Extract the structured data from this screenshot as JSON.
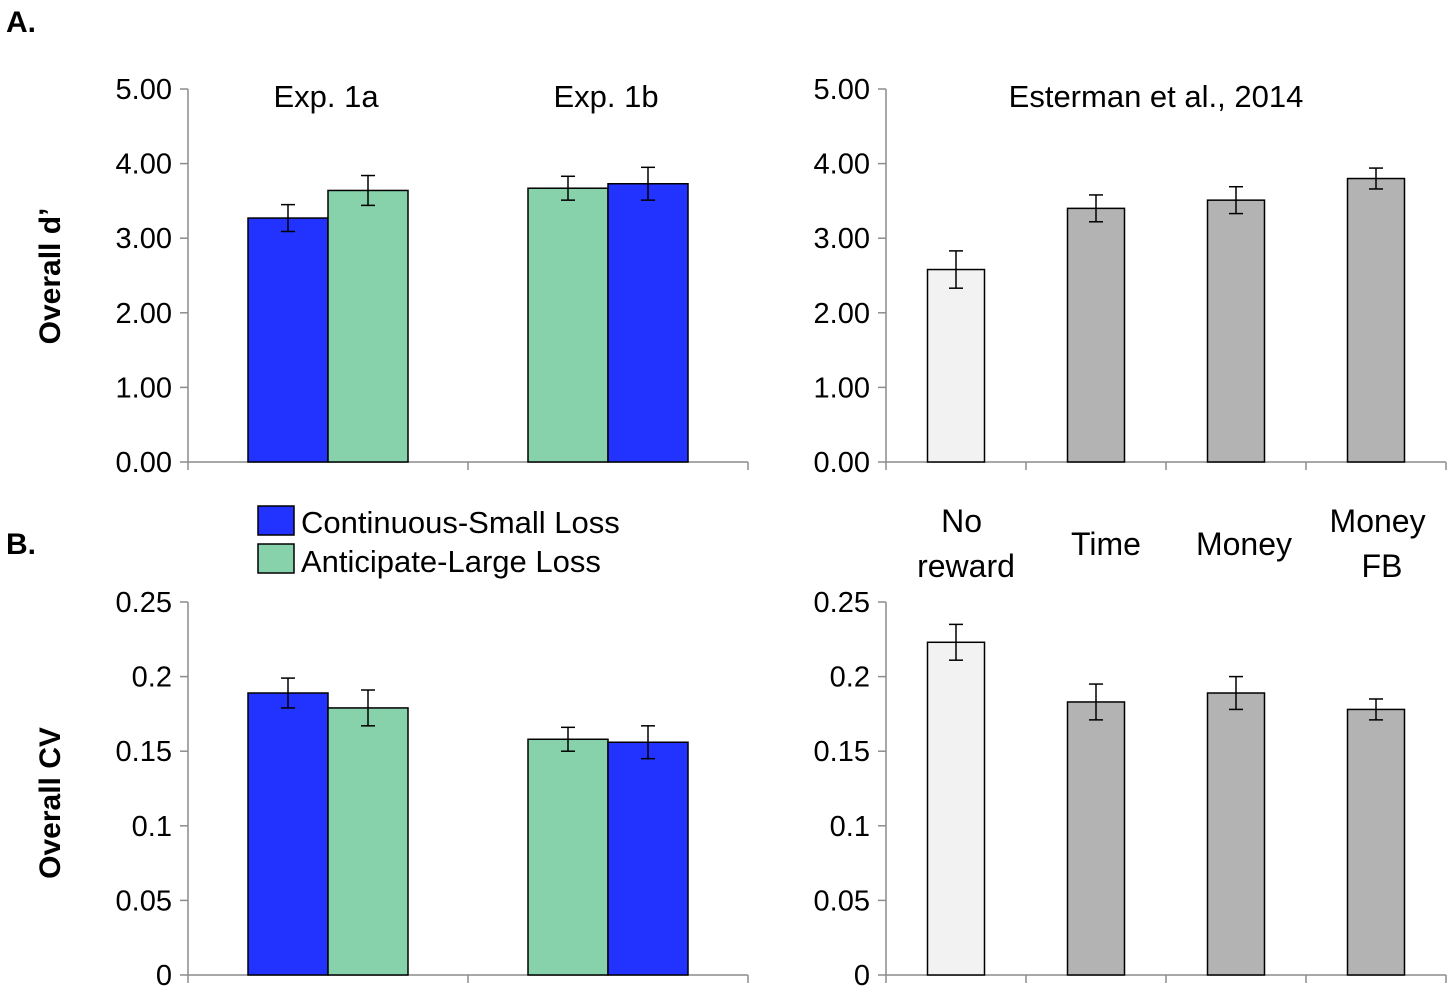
{
  "panel_labels": {
    "a": "A.",
    "b": "B."
  },
  "legend": [
    {
      "label": "Continuous-Small Loss",
      "color": "#2233ff"
    },
    {
      "label": "Anticipate-Large Loss",
      "color": "#87d1ab"
    }
  ],
  "categories_right": [
    "No reward",
    "Time",
    "Money",
    "Money FB"
  ],
  "colors": {
    "blue": "#2233ff",
    "green": "#87d1ab",
    "light_gray": "#f2f2f2",
    "gray": "#b3b3b3"
  },
  "chart_data": [
    {
      "type": "bar",
      "panel": "A",
      "ylabel": "Overall d’",
      "ylim": [
        0,
        5
      ],
      "yticks": [
        "0.00",
        "1.00",
        "2.00",
        "3.00",
        "4.00",
        "5.00"
      ],
      "groups": [
        {
          "title": "Exp. 1a",
          "bars": [
            {
              "series": "Continuous-Small Loss",
              "value": 3.27,
              "err": 0.18
            },
            {
              "series": "Anticipate-Large Loss",
              "value": 3.64,
              "err": 0.2
            }
          ]
        },
        {
          "title": "Exp. 1b",
          "bars": [
            {
              "series": "Anticipate-Large Loss",
              "value": 3.67,
              "err": 0.16
            },
            {
              "series": "Continuous-Small Loss",
              "value": 3.73,
              "err": 0.22
            }
          ]
        }
      ]
    },
    {
      "type": "bar",
      "panel": "A",
      "title": "Esterman et al., 2014",
      "ylim": [
        0,
        5
      ],
      "yticks": [
        "0.00",
        "1.00",
        "2.00",
        "3.00",
        "4.00",
        "5.00"
      ],
      "categories": [
        "No reward",
        "Time",
        "Money",
        "Money FB"
      ],
      "values": [
        2.58,
        3.4,
        3.51,
        3.8
      ],
      "errors": [
        0.25,
        0.18,
        0.18,
        0.14
      ]
    },
    {
      "type": "bar",
      "panel": "B",
      "ylabel": "Overall CV",
      "ylim": [
        0,
        0.25
      ],
      "yticks": [
        "0",
        "0.05",
        "0.1",
        "0.15",
        "0.2",
        "0.25"
      ],
      "groups": [
        {
          "bars": [
            {
              "series": "Continuous-Small Loss",
              "value": 0.189,
              "err": 0.01
            },
            {
              "series": "Anticipate-Large Loss",
              "value": 0.179,
              "err": 0.012
            }
          ]
        },
        {
          "bars": [
            {
              "series": "Anticipate-Large Loss",
              "value": 0.158,
              "err": 0.008
            },
            {
              "series": "Continuous-Small Loss",
              "value": 0.156,
              "err": 0.011
            }
          ]
        }
      ]
    },
    {
      "type": "bar",
      "panel": "B",
      "ylim": [
        0,
        0.25
      ],
      "yticks": [
        "0",
        "0.05",
        "0.1",
        "0.15",
        "0.2",
        "0.25"
      ],
      "categories": [
        "No reward",
        "Time",
        "Money",
        "Money FB"
      ],
      "values": [
        0.223,
        0.183,
        0.189,
        0.178
      ],
      "errors": [
        0.012,
        0.012,
        0.011,
        0.007
      ]
    }
  ]
}
